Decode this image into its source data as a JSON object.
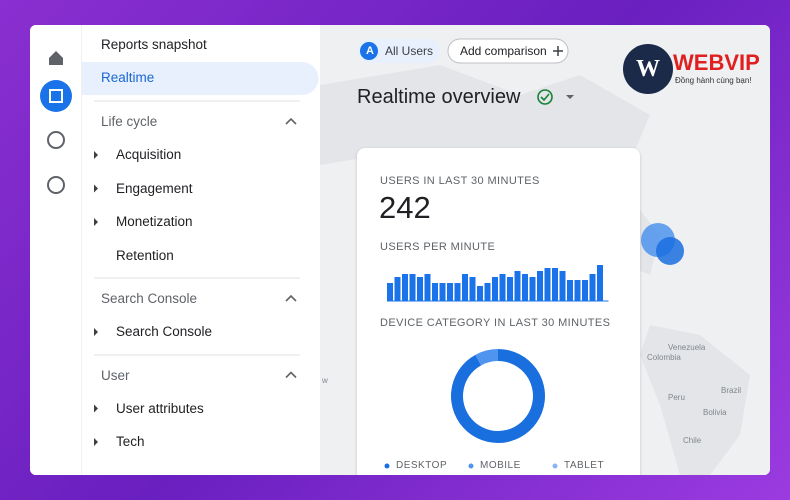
{
  "sidebar": {
    "items": [
      "Reports snapshot",
      "Realtime"
    ],
    "sections": [
      {
        "title": "Life cycle",
        "items": [
          "Acquisition",
          "Engagement",
          "Monetization",
          "Retention"
        ]
      },
      {
        "title": "Search Console",
        "items": [
          "Search Console"
        ]
      },
      {
        "title": "User",
        "items": [
          "User attributes",
          "Tech"
        ]
      }
    ]
  },
  "toolbar": {
    "segment_badge": "A",
    "segment": "All Users",
    "add_comparison": "Add comparison",
    "title": "Realtime overview"
  },
  "logo": {
    "brand": "WEBVIP",
    "tagline": "Đồng hành cùng bạn!"
  },
  "card": {
    "users_label": "USERS IN LAST 30 MINUTES",
    "users_value": 242,
    "per_minute_label": "USERS PER MINUTE",
    "users_per_minute": [
      6,
      8,
      9,
      9,
      8,
      9,
      6,
      6,
      6,
      6,
      9,
      8,
      5,
      6,
      8,
      9,
      8,
      10,
      9,
      8,
      10,
      11,
      11,
      10,
      7,
      7,
      7,
      9,
      12
    ],
    "device_label": "DEVICE CATEGORY IN LAST 30 MINUTES",
    "devices": [
      {
        "name": "DESKTOP",
        "color": "#1a6fdf",
        "value": 92
      },
      {
        "name": "MOBILE",
        "color": "#4f94ef",
        "value": 8
      },
      {
        "name": "TABLET",
        "color": "#8ab4f8",
        "value": 0
      }
    ]
  },
  "map_labels": [
    "w",
    "Venezuela",
    "Colombia",
    "Brazil",
    "Peru",
    "Bolivia",
    "Chile"
  ]
}
